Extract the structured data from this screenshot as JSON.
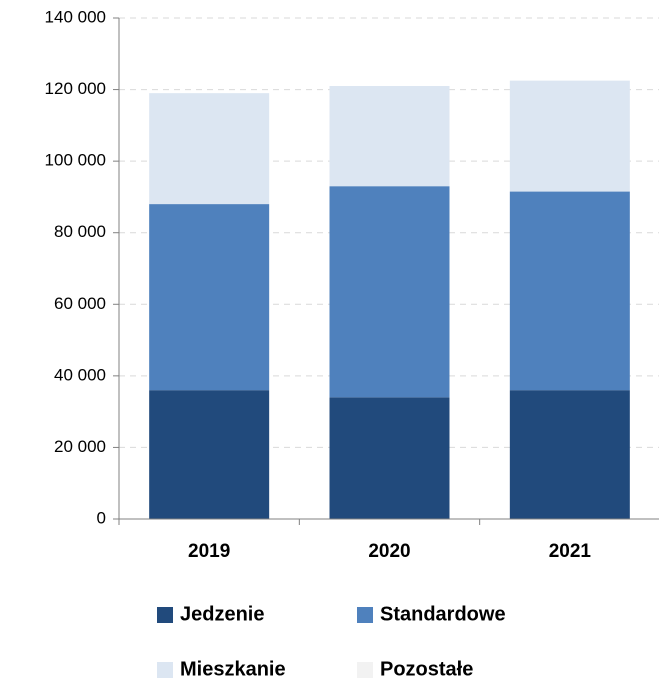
{
  "chart_data": {
    "type": "bar",
    "stacked": true,
    "categories": [
      "2019",
      "2020",
      "2021"
    ],
    "series": [
      {
        "name": "Jedzenie",
        "color": "#214a7c",
        "values": [
          36000,
          34000,
          36000
        ]
      },
      {
        "name": "Standardowe",
        "color": "#4f81bd",
        "values": [
          52000,
          59000,
          55500
        ]
      },
      {
        "name": "Mieszkanie",
        "color": "#dce6f2",
        "values": [
          31000,
          28000,
          31000
        ]
      },
      {
        "name": "Pozostałe",
        "color": "#f2f2f2",
        "values": [
          0,
          0,
          0
        ]
      }
    ],
    "ylim": [
      0,
      140000
    ],
    "yticks": [
      0,
      {
        "value": 20000,
        "label": "20 000"
      },
      {
        "value": 40000,
        "label": "40 000"
      },
      {
        "value": 60000,
        "label": "60 000"
      },
      {
        "value": 80000,
        "label": "80 000"
      },
      {
        "value": 100000,
        "label": "100 000"
      },
      {
        "value": 120000,
        "label": "120 000"
      },
      {
        "value": 140000,
        "label": "140 000"
      }
    ],
    "grid": true
  }
}
